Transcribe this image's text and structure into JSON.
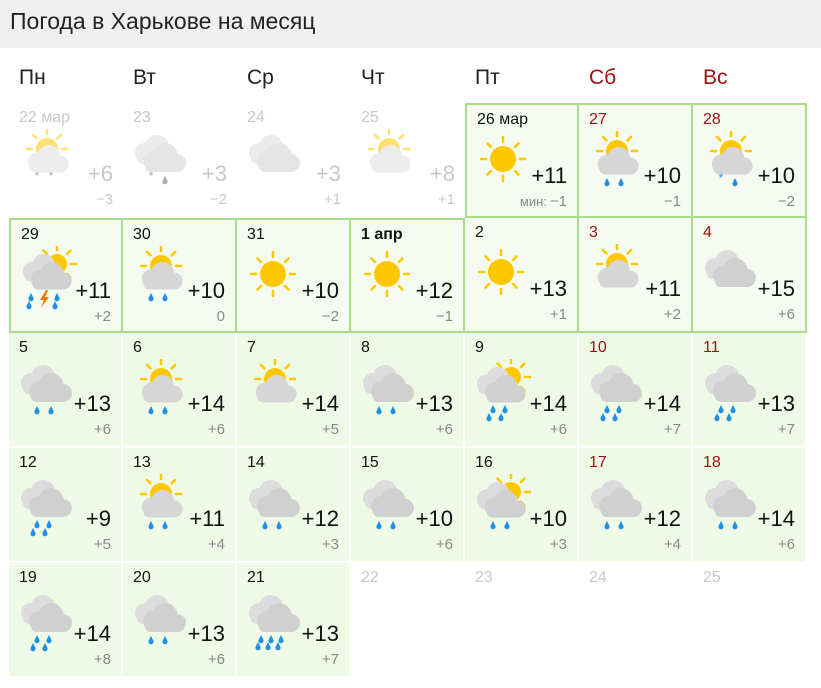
{
  "title": "Погода в Харькове на месяц",
  "weekdays": [
    {
      "label": "Пн",
      "weekend": false
    },
    {
      "label": "Вт",
      "weekend": false
    },
    {
      "label": "Ср",
      "weekend": false
    },
    {
      "label": "Чт",
      "weekend": false
    },
    {
      "label": "Пт",
      "weekend": false
    },
    {
      "label": "Сб",
      "weekend": true
    },
    {
      "label": "Вс",
      "weekend": true
    }
  ],
  "min_label": "мин:",
  "colors": {
    "border": "#a6df8a",
    "weekend": "#a01010",
    "sun": "#ffc700",
    "cloud": "#d6d6d6",
    "rain": "#1e90e6",
    "bolt": "#f07800"
  },
  "days": [
    {
      "date": "22 мар",
      "state": "past",
      "icon": "partly-cloudy",
      "precip": "snow",
      "max": "+6",
      "min": "−3"
    },
    {
      "date": "23",
      "state": "past",
      "icon": "cloudy",
      "precip": "sleet",
      "max": "+3",
      "min": "−2"
    },
    {
      "date": "24",
      "state": "past",
      "icon": "cloudy",
      "precip": "",
      "max": "+3",
      "min": "+1"
    },
    {
      "date": "25",
      "state": "past",
      "icon": "partly-cloudy",
      "precip": "",
      "max": "+8",
      "min": "+1"
    },
    {
      "date": "26 мар",
      "state": "cur",
      "icon": "sunny",
      "precip": "",
      "max": "+11",
      "min": "−1",
      "show_min_label": true
    },
    {
      "date": "27",
      "state": "cur",
      "icon": "partly-cloudy",
      "precip": "rain-light",
      "max": "+10",
      "min": "−1"
    },
    {
      "date": "28",
      "state": "cur",
      "icon": "partly-cloudy",
      "precip": "snow-rain",
      "max": "+10",
      "min": "−2"
    },
    {
      "date": "29",
      "state": "cur",
      "icon": "cloudy-sun",
      "precip": "thunderstorm",
      "max": "+11",
      "min": "+2"
    },
    {
      "date": "30",
      "state": "cur",
      "icon": "partly-cloudy",
      "precip": "rain-light",
      "max": "+10",
      "min": "0"
    },
    {
      "date": "31",
      "state": "cur",
      "icon": "sunny",
      "precip": "",
      "max": "+10",
      "min": "−2"
    },
    {
      "date": "1 апр",
      "state": "cur",
      "bold": true,
      "icon": "sunny",
      "precip": "",
      "max": "+12",
      "min": "−1"
    },
    {
      "date": "2",
      "state": "cur",
      "icon": "sunny",
      "precip": "",
      "max": "+13",
      "min": "+1"
    },
    {
      "date": "3",
      "state": "cur",
      "icon": "partly-cloudy",
      "precip": "",
      "max": "+11",
      "min": "+2"
    },
    {
      "date": "4",
      "state": "cur",
      "icon": "cloudy",
      "precip": "",
      "max": "+15",
      "min": "+6"
    },
    {
      "date": "5",
      "state": "fut",
      "icon": "cloudy",
      "precip": "rain-light",
      "max": "+13",
      "min": "+6"
    },
    {
      "date": "6",
      "state": "fut",
      "icon": "partly-cloudy",
      "precip": "rain-light",
      "max": "+14",
      "min": "+6"
    },
    {
      "date": "7",
      "state": "fut",
      "icon": "partly-cloudy",
      "precip": "",
      "max": "+14",
      "min": "+5"
    },
    {
      "date": "8",
      "state": "fut",
      "icon": "cloudy",
      "precip": "rain-light",
      "max": "+13",
      "min": "+6"
    },
    {
      "date": "9",
      "state": "fut",
      "icon": "cloudy-sun",
      "precip": "rain",
      "max": "+14",
      "min": "+6"
    },
    {
      "date": "10",
      "state": "fut",
      "icon": "cloudy",
      "precip": "rain",
      "max": "+14",
      "min": "+7"
    },
    {
      "date": "11",
      "state": "fut",
      "icon": "cloudy",
      "precip": "rain",
      "max": "+13",
      "min": "+7"
    },
    {
      "date": "12",
      "state": "fut",
      "icon": "cloudy",
      "precip": "rain",
      "max": "+9",
      "min": "+5"
    },
    {
      "date": "13",
      "state": "fut",
      "icon": "partly-cloudy",
      "precip": "rain-light",
      "max": "+11",
      "min": "+4"
    },
    {
      "date": "14",
      "state": "fut",
      "icon": "cloudy",
      "precip": "rain-light",
      "max": "+12",
      "min": "+3"
    },
    {
      "date": "15",
      "state": "fut",
      "icon": "cloudy",
      "precip": "rain-light",
      "max": "+10",
      "min": "+6"
    },
    {
      "date": "16",
      "state": "fut",
      "icon": "cloudy-sun",
      "precip": "rain-light",
      "max": "+10",
      "min": "+3"
    },
    {
      "date": "17",
      "state": "fut",
      "icon": "cloudy",
      "precip": "rain-light",
      "max": "+12",
      "min": "+4"
    },
    {
      "date": "18",
      "state": "fut",
      "icon": "cloudy",
      "precip": "rain-light",
      "max": "+14",
      "min": "+6"
    },
    {
      "date": "19",
      "state": "fut",
      "icon": "cloudy",
      "precip": "rain",
      "max": "+14",
      "min": "+8"
    },
    {
      "date": "20",
      "state": "fut",
      "icon": "cloudy",
      "precip": "rain-light",
      "max": "+13",
      "min": "+6"
    },
    {
      "date": "21",
      "state": "fut",
      "icon": "cloudy",
      "precip": "rain-heavy",
      "max": "+13",
      "min": "+7"
    },
    {
      "date": "22",
      "state": "empty"
    },
    {
      "date": "23",
      "state": "empty"
    },
    {
      "date": "24",
      "state": "empty"
    },
    {
      "date": "25",
      "state": "empty"
    }
  ]
}
